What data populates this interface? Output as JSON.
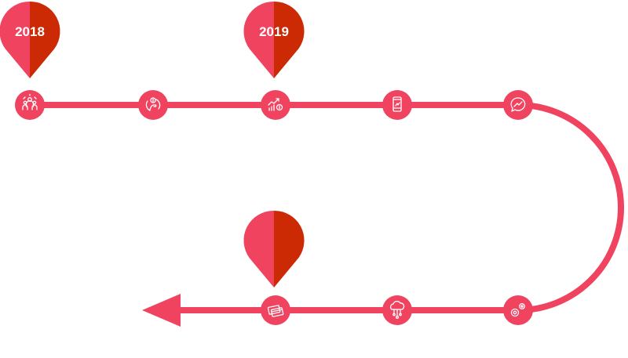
{
  "colors": {
    "track": "#ef4360",
    "pin_left": "#ef4360",
    "pin_right": "#cc2a05",
    "icon": "#ffffff",
    "background": "#ffffff"
  },
  "pins": [
    {
      "label": "2018"
    },
    {
      "label": "2019"
    },
    {
      "label": ""
    }
  ],
  "nodes": [
    {
      "icon": "team-icon"
    },
    {
      "icon": "money-hand-icon"
    },
    {
      "icon": "growth-chart-icon"
    },
    {
      "icon": "mobile-phone-icon"
    },
    {
      "icon": "messenger-icon"
    },
    {
      "icon": "gears-icon"
    },
    {
      "icon": "cloud-network-icon"
    },
    {
      "icon": "credit-cards-icon"
    }
  ]
}
